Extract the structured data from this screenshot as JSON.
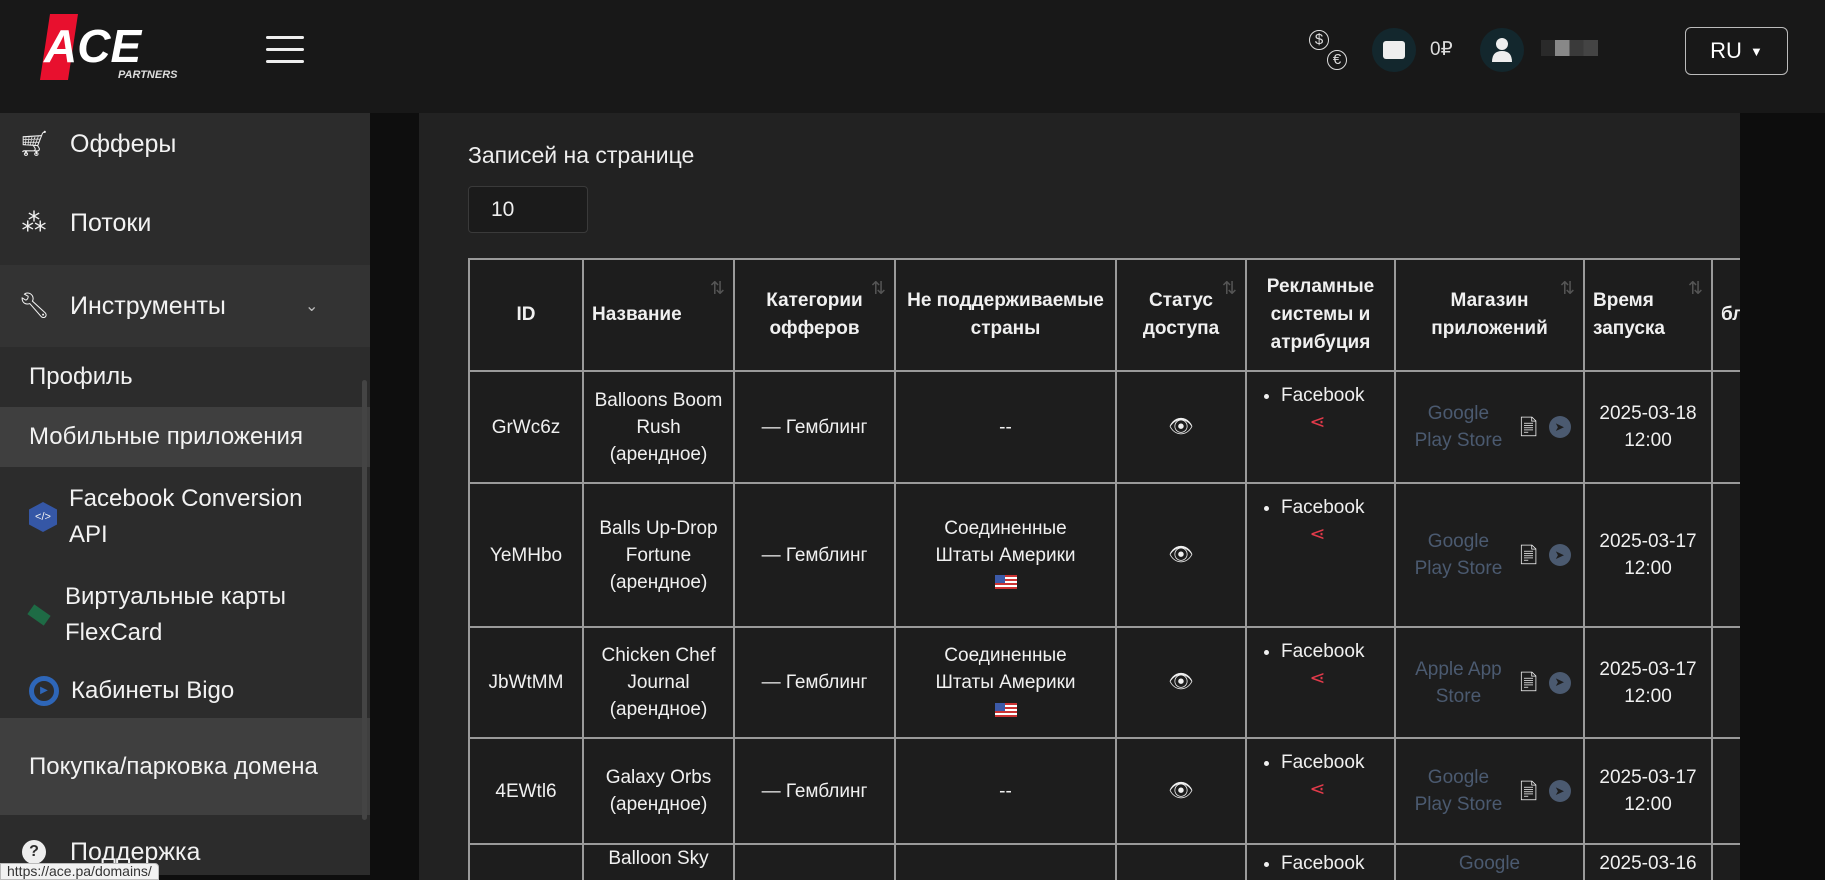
{
  "header": {
    "logo_text": "ACE",
    "logo_sub": "PARTNERS",
    "balance": "0₽",
    "language": "RU"
  },
  "sidebar": {
    "items": [
      {
        "label": "Офферы",
        "icon": "cart-icon"
      },
      {
        "label": "Потоки",
        "icon": "sitemap-icon"
      },
      {
        "label": "Инструменты",
        "icon": "wrench-icon"
      },
      {
        "label": "Профиль"
      },
      {
        "label": "Мобильные приложения"
      },
      {
        "label": "Facebook Conversion API",
        "icon": "code-icon"
      },
      {
        "label": "Виртуальные карты FlexCard",
        "icon": "card-icon"
      },
      {
        "label": "Кабинеты Bigo",
        "icon": "play-icon"
      },
      {
        "label": "Покупка/парковка домена"
      },
      {
        "label": "Поддержка",
        "icon": "question-icon"
      }
    ]
  },
  "main": {
    "per_page_label": "Записей на странице",
    "per_page_value": "10"
  },
  "table": {
    "headers": [
      "ID",
      "Название",
      "Категории офферов",
      "Не поддерживаемые страны",
      "Статус доступа",
      "Рекламные системы и атрибуция",
      "Магазин приложений",
      "Время запуска",
      "бл"
    ],
    "rows": [
      {
        "id": "GrWc6z",
        "name": "Balloons Boom Rush (арендное)",
        "category": "— Гемблинг",
        "countries": "--",
        "ads": "Facebook",
        "store": "Google Play Store",
        "date": "2025-03-18",
        "time": "12:00"
      },
      {
        "id": "YeMHbo",
        "name": "Balls Up-Drop Fortune (арендное)",
        "category": "— Гемблинг",
        "countries": "Соединенные Штаты Америки",
        "ads": "Facebook",
        "store": "Google Play Store",
        "date": "2025-03-17",
        "time": "12:00"
      },
      {
        "id": "JbWtMM",
        "name": "Chicken Chef Journal (арендное)",
        "category": "— Гемблинг",
        "countries": "Соединенные Штаты Америки",
        "ads": "Facebook",
        "store": "Apple App Store",
        "date": "2025-03-17",
        "time": "12:00"
      },
      {
        "id": "4EWtl6",
        "name": "Galaxy Orbs (арендное)",
        "category": "— Гемблинг",
        "countries": "--",
        "ads": "Facebook",
        "store": "Google Play Store",
        "date": "2025-03-17",
        "time": "12:00"
      },
      {
        "id": "",
        "name": "Balloon Sky",
        "category": "",
        "countries": "",
        "ads": "Facebook",
        "store": "Google",
        "date": "2025-03-16",
        "time": ""
      }
    ]
  },
  "statusbar": {
    "url": "https://ace.pa/domains/"
  },
  "colors": {
    "accent": "#e8102e",
    "share": "#e23a4a",
    "store_link": "#4b5a70"
  }
}
